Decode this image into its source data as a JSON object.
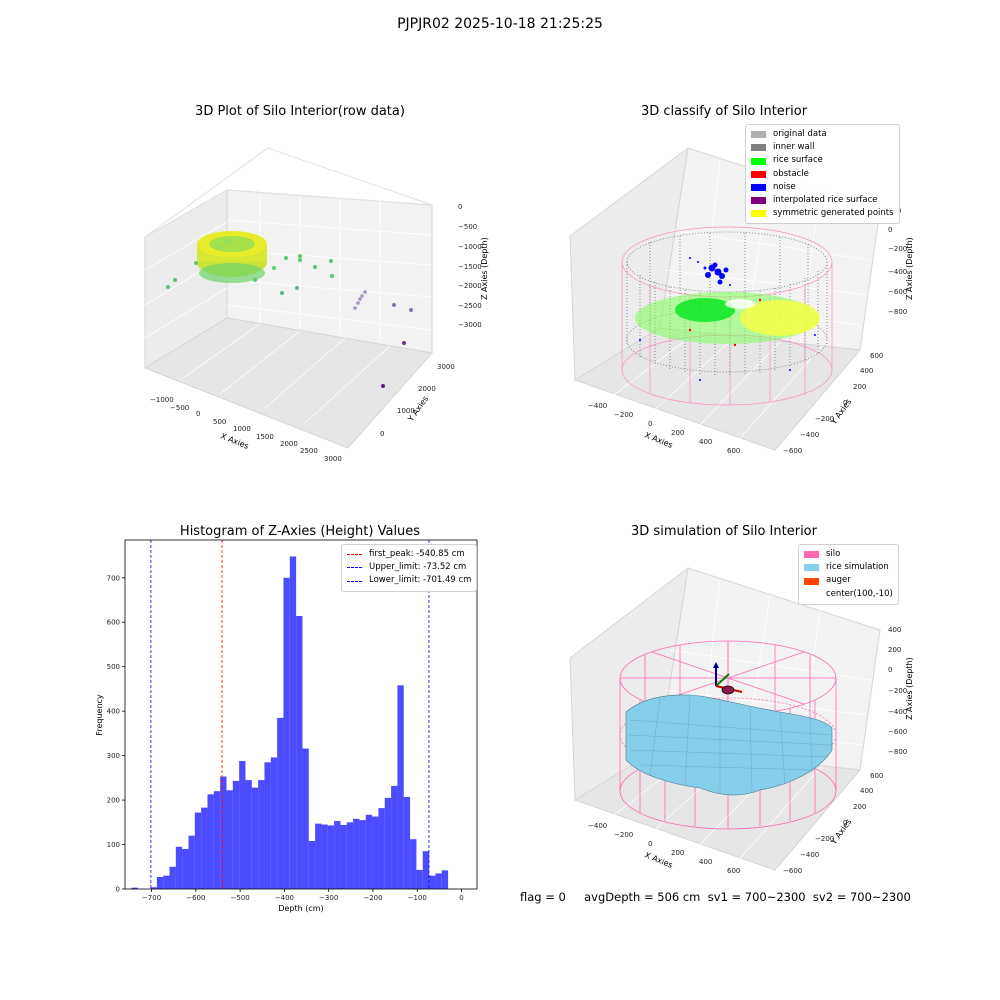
{
  "suptitle": "PJPJR02 2025-10-18 21:25:25",
  "panel1": {
    "title": "3D Plot of Silo Interior(row data)",
    "xlabel": "X Axies",
    "ylabel": "Y Axies",
    "zlabel": "Z Axies (Depth)",
    "xticks": [
      "−1000",
      "−500",
      "0",
      "500",
      "1000",
      "1500",
      "2000",
      "2500",
      "3000"
    ],
    "yticks": [
      "0",
      "1000",
      "2000",
      "3000"
    ],
    "zticks": [
      "0",
      "−500",
      "−1000",
      "−1500",
      "−2000",
      "−2500",
      "−3000"
    ]
  },
  "panel2": {
    "title": "3D classify of Silo Interior",
    "xlabel": "X Axies",
    "ylabel": "Y Axies",
    "zlabel": "Z Axies (Depth)",
    "xticks": [
      "−400",
      "−200",
      "0",
      "200",
      "400",
      "600"
    ],
    "yticks": [
      "−600",
      "−400",
      "−200",
      "0",
      "200",
      "400",
      "600"
    ],
    "zticks": [
      "200",
      "0",
      "−200",
      "−400",
      "−600",
      "−800"
    ],
    "legend": [
      {
        "label": "original data",
        "color": "#b0b0b0"
      },
      {
        "label": "inner wall",
        "color": "#808080"
      },
      {
        "label": "rice surface",
        "color": "#00ff00"
      },
      {
        "label": "obstacle",
        "color": "#ff0000"
      },
      {
        "label": "noise",
        "color": "#0000ff"
      },
      {
        "label": "interpolated rice surface",
        "color": "#800080"
      },
      {
        "label": "symmetric generated points",
        "color": "#ffff00"
      }
    ]
  },
  "panel4": {
    "title": "3D simulation of Silo Interior",
    "xlabel": "X Axies",
    "ylabel": "Y Axies",
    "zlabel": "Z Axies (Depth)",
    "xticks": [
      "−400",
      "−200",
      "0",
      "200",
      "400",
      "600"
    ],
    "yticks": [
      "−600",
      "−400",
      "−200",
      "0",
      "200",
      "400",
      "600"
    ],
    "zticks": [
      "400",
      "200",
      "0",
      "−200",
      "−400",
      "−600",
      "−800"
    ],
    "legend": [
      {
        "label": "silo",
        "color": "#ff69b4"
      },
      {
        "label": "rice simulation",
        "color": "#87ceeb"
      },
      {
        "label": "auger",
        "color": "#ff4500"
      },
      {
        "label": "center(100,-10)",
        "color": ""
      }
    ]
  },
  "footer": "flag = 0     avgDepth = 506 cm  sv1 = 700~2300  sv2 = 700~2300",
  "chart_data": [
    {
      "type": "bar",
      "title": "Histogram of Z-Axies (Height) Values",
      "xlabel": "Depth (cm)",
      "ylabel": "Frequency",
      "bar_color": "#0000ff",
      "bar_opacity": 0.7,
      "xlim": [
        -760,
        35
      ],
      "ylim": [
        0,
        785
      ],
      "xticks": [
        -700,
        -600,
        -500,
        -400,
        -300,
        -200,
        -100,
        0
      ],
      "yticks": [
        0,
        100,
        200,
        300,
        400,
        500,
        600,
        700
      ],
      "bin_width": 14.3,
      "bin_starts": [
        -745.3,
        -731.0,
        -716.7,
        -702.4,
        -688.1,
        -673.8,
        -659.5,
        -645.2,
        -630.9,
        -616.6,
        -602.3,
        -588.0,
        -573.7,
        -559.4,
        -545.1,
        -530.8,
        -516.5,
        -502.2,
        -487.9,
        -473.6,
        -459.3,
        -445.0,
        -430.7,
        -416.4,
        -402.1,
        -387.8,
        -373.5,
        -359.2,
        -344.9,
        -330.6,
        -316.3,
        -302.0,
        -287.7,
        -273.4,
        -259.1,
        -244.8,
        -230.5,
        -216.2,
        -201.9,
        -187.6,
        -173.3,
        -159.0,
        -144.7,
        -130.4,
        -116.1,
        -101.8,
        -87.5,
        -73.2,
        -58.9,
        -44.6,
        -30.3,
        -16.0
      ],
      "values": [
        3,
        0,
        0,
        4,
        27,
        30,
        50,
        95,
        90,
        120,
        172,
        183,
        213,
        220,
        253,
        222,
        243,
        288,
        245,
        228,
        245,
        285,
        296,
        385,
        700,
        748,
        614,
        316,
        108,
        147,
        145,
        143,
        153,
        144,
        150,
        158,
        155,
        167,
        163,
        182,
        205,
        232,
        458,
        207,
        112,
        43,
        85,
        30,
        35,
        42,
        0,
        0
      ],
      "vlines": [
        {
          "x": -540.85,
          "color": "#ff0000",
          "label": "first_peak: -540.85 cm"
        },
        {
          "x": -73.52,
          "color": "#0000ff",
          "label": "Upper_limit: -73.52 cm"
        },
        {
          "x": -701.49,
          "color": "#0000ff",
          "label": "Lower_limit: -701.49 cm"
        }
      ],
      "legend_loc": "upper right"
    }
  ]
}
